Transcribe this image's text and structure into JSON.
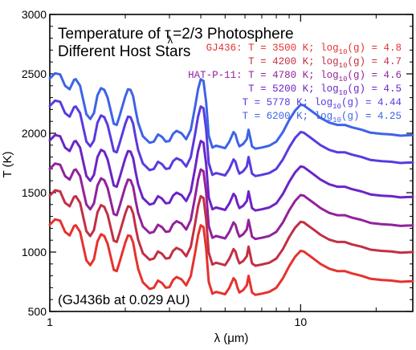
{
  "chart_data": {
    "type": "line",
    "title_line1_prefix": "Temperature of ",
    "title_tau": "τ",
    "title_tau_sub": "λ",
    "title_line1_suffix": "=2/3 Photosphere",
    "title_line2": "Different Host Stars",
    "annotation": "(GJ436b at 0.029 AU)",
    "xlabel": "λ (μm)",
    "ylabel": "T (K)",
    "x_scale": "log",
    "xlim": [
      1,
      28
    ],
    "ylim": [
      500,
      3000
    ],
    "x_ticks": [
      {
        "value": 1,
        "label": "1"
      },
      {
        "value": 10,
        "label": "10"
      }
    ],
    "y_ticks": [
      {
        "value": 500,
        "label": "500"
      },
      {
        "value": 1000,
        "label": "1000"
      },
      {
        "value": 1500,
        "label": "1500"
      },
      {
        "value": 2000,
        "label": "2000"
      },
      {
        "value": 2500,
        "label": "2500"
      },
      {
        "value": 3000,
        "label": "3000"
      }
    ],
    "legend_placement": "top-right",
    "legend": [
      {
        "prefix": "GJ436: ",
        "t_text": "T = 3500 K; log",
        "sub": "10",
        "g_text": "(g) = 4.8",
        "color": "#e6322e"
      },
      {
        "prefix": "",
        "t_text": "T = 4200 K; log",
        "sub": "10",
        "g_text": "(g) = 4.7",
        "color": "#c22f44"
      },
      {
        "prefix": "HAT-P-11: ",
        "t_text": "T = 4780 K; log",
        "sub": "10",
        "g_text": "(g) = 4.6",
        "color": "#92229b"
      },
      {
        "prefix": "",
        "t_text": "T = 5200 K; log",
        "sub": "10",
        "g_text": "(g) = 4.5",
        "color": "#6b24c6"
      },
      {
        "prefix": "",
        "t_text": "T = 5778 K; log",
        "sub": "10",
        "g_text": "(g) = 4.44",
        "color": "#5a3ae0"
      },
      {
        "prefix": "",
        "t_text": "T = 6200 K; log",
        "sub": "10",
        "g_text": "(g) = 4.25",
        "color": "#3d63e8"
      }
    ],
    "base_curve": {
      "x": [
        1.0,
        1.05,
        1.1,
        1.15,
        1.2,
        1.25,
        1.27,
        1.32,
        1.4,
        1.45,
        1.5,
        1.55,
        1.6,
        1.65,
        1.7,
        1.75,
        1.8,
        1.85,
        1.9,
        2.0,
        2.05,
        2.1,
        2.15,
        2.2,
        2.25,
        2.35,
        2.5,
        2.6,
        2.7,
        2.8,
        2.9,
        3.0,
        3.1,
        3.2,
        3.35,
        3.5,
        3.65,
        3.8,
        3.9,
        4.0,
        4.1,
        4.2,
        4.3,
        4.45,
        4.6,
        4.8,
        5.0,
        5.2,
        5.4,
        5.5,
        5.6,
        5.7,
        5.9,
        6.1,
        6.2,
        6.3,
        6.4,
        6.6,
        7.0,
        7.5,
        8.0,
        8.5,
        9.0,
        9.5,
        10.0,
        10.3,
        10.6,
        11.0,
        11.5,
        12.0,
        13.0,
        14.0,
        15.0,
        16.0,
        17.5,
        19.0,
        21.0,
        23.0,
        25.0,
        28.0
      ],
      "T_3500K": [
        1230,
        1275,
        1265,
        1170,
        1140,
        1220,
        1225,
        1170,
        930,
        890,
        940,
        1090,
        1150,
        1135,
        1070,
        960,
        850,
        840,
        920,
        1080,
        1140,
        1135,
        1080,
        960,
        860,
        745,
        690,
        700,
        760,
        740,
        700,
        705,
        765,
        790,
        770,
        720,
        800,
        1000,
        1140,
        1225,
        1210,
        1030,
        750,
        650,
        665,
        655,
        645,
        700,
        780,
        760,
        700,
        660,
        680,
        720,
        800,
        730,
        660,
        640,
        650,
        665,
        700,
        780,
        880,
        960,
        1010,
        1005,
        985,
        960,
        930,
        900,
        860,
        840,
        840,
        820,
        800,
        775,
        765,
        760,
        750,
        755
      ]
    },
    "series": [
      {
        "color": "#e6322e",
        "offset": 0
      },
      {
        "color": "#c22f44",
        "offset": 245
      },
      {
        "color": "#92229b",
        "offset": 470
      },
      {
        "color": "#6b24c6",
        "offset": 710
      },
      {
        "color": "#5a3ae0",
        "offset": 1000
      },
      {
        "color": "#3d63e8",
        "offset": 1230
      }
    ]
  }
}
